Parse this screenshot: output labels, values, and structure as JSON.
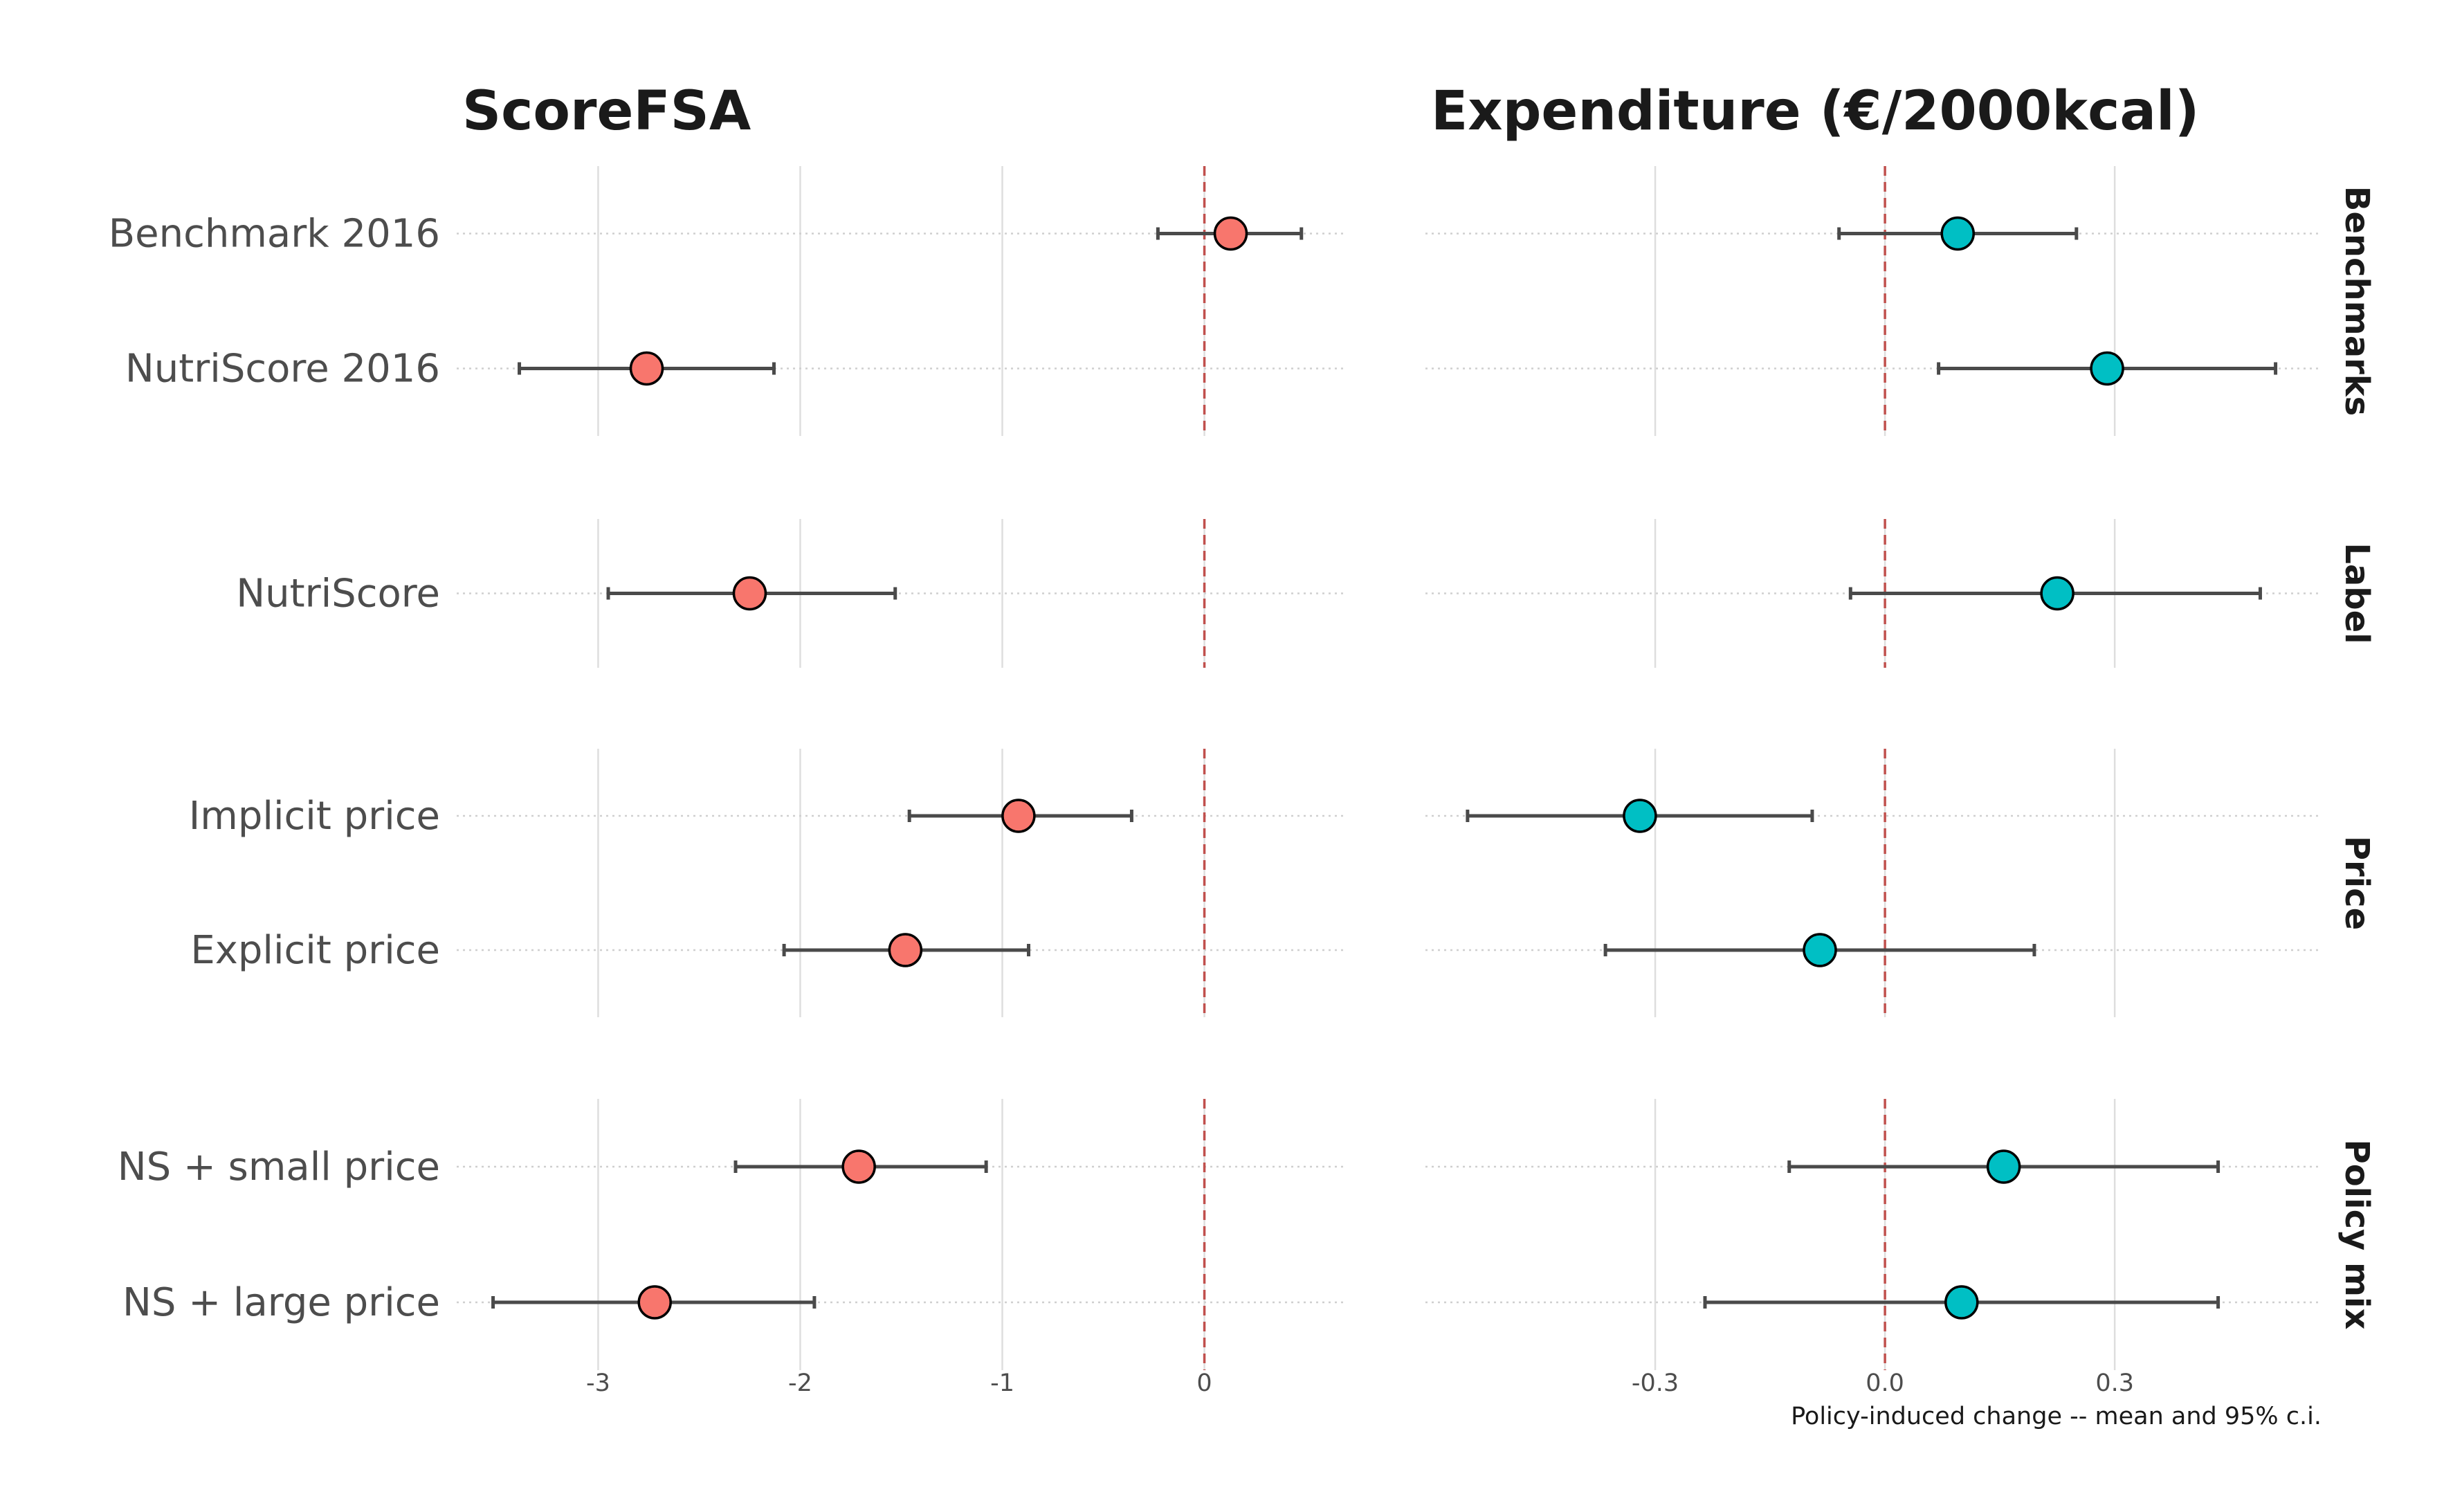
{
  "chart_data": {
    "type": "scatter",
    "caption": "Policy-induced change -- mean and 95% c.i.",
    "reference_line": 0,
    "panels": [
      {
        "title": "ScoreFSA",
        "color": "#F8766D",
        "xlim": [
          -3.7,
          0.7
        ],
        "ticks": [
          -3,
          -2,
          -1,
          0
        ],
        "tick_labels": [
          "-3",
          "-2",
          "-1",
          "0"
        ]
      },
      {
        "title": "Expenditure (€/2000kcal)",
        "color": "#00BFC4",
        "xlim": [
          -0.6,
          0.57
        ],
        "ticks": [
          -0.3,
          0.0,
          0.3
        ],
        "tick_labels": [
          "-0.3",
          "0.0",
          "0.3"
        ]
      }
    ],
    "groups": [
      {
        "name": "Benchmarks",
        "rows": [
          "Benchmark 2016",
          "NutriScore 2016"
        ]
      },
      {
        "name": "Label",
        "rows": [
          "NutriScore"
        ]
      },
      {
        "name": "Price",
        "rows": [
          "Implicit price",
          "Explicit price"
        ]
      },
      {
        "name": "Policy mix",
        "rows": [
          "NS + small price",
          "NS + large price"
        ]
      }
    ],
    "series": [
      {
        "name": "ScoreFSA",
        "points": [
          {
            "row": "Benchmark 2016",
            "mean": 0.13,
            "lo": -0.23,
            "hi": 0.48
          },
          {
            "row": "NutriScore 2016",
            "mean": -2.76,
            "lo": -3.39,
            "hi": -2.13
          },
          {
            "row": "NutriScore",
            "mean": -2.25,
            "lo": -2.95,
            "hi": -1.53
          },
          {
            "row": "Implicit price",
            "mean": -0.92,
            "lo": -1.46,
            "hi": -0.36
          },
          {
            "row": "Explicit price",
            "mean": -1.48,
            "lo": -2.08,
            "hi": -0.87
          },
          {
            "row": "NS + small price",
            "mean": -1.71,
            "lo": -2.32,
            "hi": -1.08
          },
          {
            "row": "NS + large price",
            "mean": -2.72,
            "lo": -3.52,
            "hi": -1.93
          }
        ]
      },
      {
        "name": "Expenditure (€/2000kcal)",
        "points": [
          {
            "row": "Benchmark 2016",
            "mean": 0.095,
            "lo": -0.06,
            "hi": 0.25
          },
          {
            "row": "NutriScore 2016",
            "mean": 0.29,
            "lo": 0.07,
            "hi": 0.51
          },
          {
            "row": "NutriScore",
            "mean": 0.225,
            "lo": -0.045,
            "hi": 0.49
          },
          {
            "row": "Implicit price",
            "mean": -0.32,
            "lo": -0.545,
            "hi": -0.095
          },
          {
            "row": "Explicit price",
            "mean": -0.085,
            "lo": -0.365,
            "hi": 0.195
          },
          {
            "row": "NS + small price",
            "mean": 0.155,
            "lo": -0.125,
            "hi": 0.435
          },
          {
            "row": "NS + large price",
            "mean": 0.1,
            "lo": -0.235,
            "hi": 0.435
          }
        ]
      }
    ]
  }
}
